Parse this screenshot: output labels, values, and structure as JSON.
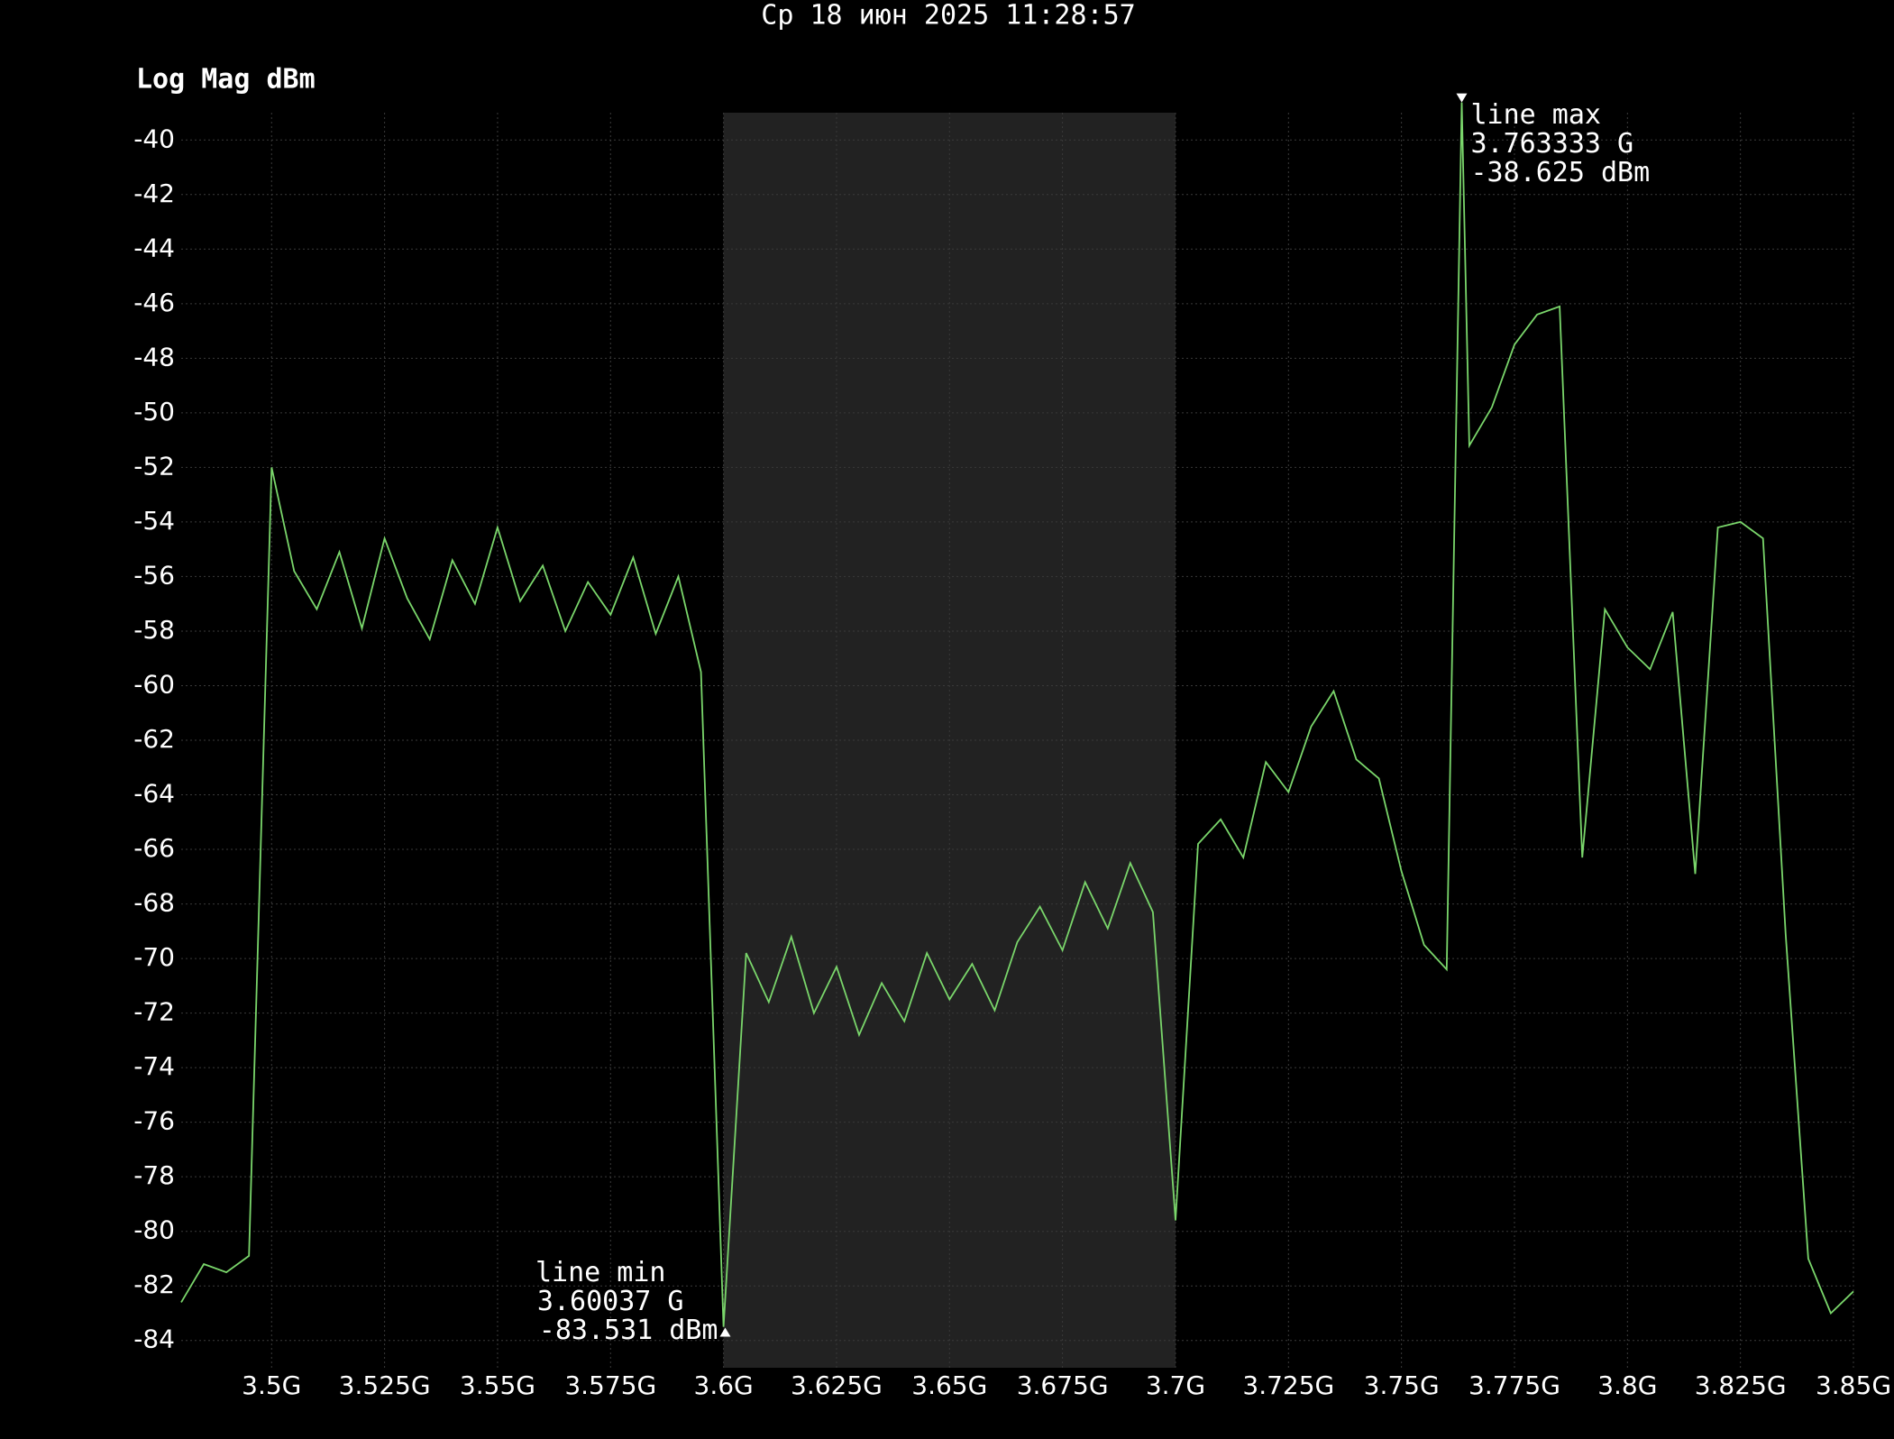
{
  "chart_data": {
    "type": "line",
    "title": "Ср 18 июн 2025 11:28:57",
    "y_label": "Log Mag dBm",
    "x": [
      3.48,
      3.485,
      3.49,
      3.495,
      3.5,
      3.505,
      3.51,
      3.515,
      3.52,
      3.525,
      3.53,
      3.535,
      3.54,
      3.545,
      3.55,
      3.555,
      3.56,
      3.565,
      3.57,
      3.575,
      3.58,
      3.585,
      3.59,
      3.595,
      3.6,
      3.605,
      3.61,
      3.615,
      3.62,
      3.625,
      3.63,
      3.635,
      3.64,
      3.645,
      3.65,
      3.655,
      3.66,
      3.665,
      3.67,
      3.675,
      3.68,
      3.685,
      3.69,
      3.695,
      3.7,
      3.705,
      3.71,
      3.715,
      3.72,
      3.725,
      3.73,
      3.735,
      3.74,
      3.745,
      3.75,
      3.755,
      3.76,
      3.763333,
      3.765,
      3.77,
      3.775,
      3.78,
      3.785,
      3.79,
      3.795,
      3.8,
      3.805,
      3.81,
      3.815,
      3.82,
      3.825,
      3.83,
      3.835,
      3.84,
      3.845,
      3.85
    ],
    "values": [
      -82.6,
      -81.2,
      -81.5,
      -80.9,
      -52,
      -55.8,
      -57.2,
      -55.1,
      -57.9,
      -54.6,
      -56.8,
      -58.3,
      -55.4,
      -57.0,
      -54.2,
      -56.9,
      -55.6,
      -58.0,
      -56.2,
      -57.4,
      -55.3,
      -58.1,
      -56.0,
      -59.5,
      -83.5,
      -69.8,
      -71.6,
      -69.2,
      -72.0,
      -70.3,
      -72.8,
      -70.9,
      -72.3,
      -69.8,
      -71.5,
      -70.2,
      -71.9,
      -69.4,
      -68.1,
      -69.7,
      -67.2,
      -68.9,
      -66.5,
      -68.3,
      -79.6,
      -65.8,
      -64.9,
      -66.3,
      -62.8,
      -63.9,
      -61.5,
      -60.2,
      -62.7,
      -63.4,
      -66.8,
      -69.5,
      -70.4,
      -38.625,
      -51.2,
      -49.8,
      -47.5,
      -46.4,
      -46.1,
      -66.3,
      -57.2,
      -58.6,
      -59.4,
      -57.3,
      -66.9,
      -54.2,
      -54.0,
      -54.6,
      -69.1,
      -81.0,
      -83.0,
      -82.2
    ],
    "color": "#7ad66b",
    "highlight_x": [
      3.6,
      3.7
    ],
    "highlight_color": "#222222",
    "grid": true,
    "xlim": [
      3.48,
      3.85
    ],
    "ylim": [
      -85,
      -39
    ],
    "xticks": [
      {
        "value": 3.5,
        "label": "3.5G"
      },
      {
        "value": 3.525,
        "label": "3.525G"
      },
      {
        "value": 3.55,
        "label": "3.55G"
      },
      {
        "value": 3.575,
        "label": "3.575G"
      },
      {
        "value": 3.6,
        "label": "3.6G"
      },
      {
        "value": 3.625,
        "label": "3.625G"
      },
      {
        "value": 3.65,
        "label": "3.65G"
      },
      {
        "value": 3.675,
        "label": "3.675G"
      },
      {
        "value": 3.7,
        "label": "3.7G"
      },
      {
        "value": 3.725,
        "label": "3.725G"
      },
      {
        "value": 3.75,
        "label": "3.75G"
      },
      {
        "value": 3.775,
        "label": "3.775G"
      },
      {
        "value": 3.8,
        "label": "3.8G"
      },
      {
        "value": 3.825,
        "label": "3.825G"
      },
      {
        "value": 3.85,
        "label": "3.85G"
      }
    ],
    "yticks": [
      -40,
      -42,
      -44,
      -46,
      -48,
      -50,
      -52,
      -54,
      -56,
      -58,
      -60,
      -62,
      -64,
      -66,
      -68,
      -70,
      -72,
      -74,
      -76,
      -78,
      -80,
      -82,
      -84
    ],
    "markers": [
      {
        "label": "line max",
        "x": {
          "value": 3.763333,
          "label": "3.763333 G"
        },
        "y": {
          "value": -38.625,
          "label": "-38.625 dBm"
        },
        "side": "right"
      },
      {
        "label": "line min",
        "x": {
          "value": 3.60037,
          "label": "3.60037 G"
        },
        "y": {
          "value": -83.531,
          "label": "-83.531 dBm"
        },
        "side": "left"
      }
    ]
  }
}
